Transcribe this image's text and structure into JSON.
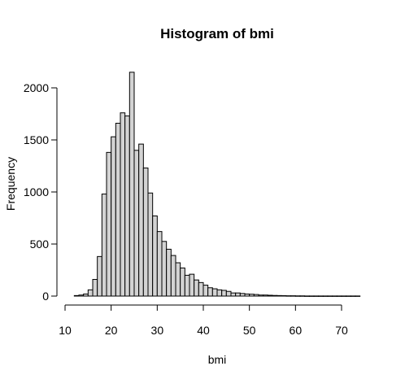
{
  "chart_data": {
    "type": "bar",
    "title": "Histogram of bmi",
    "xlabel": "bmi",
    "ylabel": "Frequency",
    "bin_width": 1,
    "bin_start": 12,
    "bin_end": 74,
    "values": [
      5,
      10,
      20,
      60,
      160,
      380,
      980,
      1380,
      1530,
      1660,
      1760,
      1730,
      2150,
      1400,
      1460,
      1230,
      990,
      770,
      620,
      525,
      450,
      390,
      320,
      270,
      200,
      210,
      155,
      130,
      105,
      80,
      70,
      60,
      55,
      45,
      30,
      30,
      25,
      20,
      18,
      15,
      10,
      10,
      8,
      6,
      5,
      4,
      3,
      3,
      2,
      2,
      1,
      1,
      1,
      1,
      1,
      1,
      1,
      1,
      1,
      1,
      1,
      1
    ],
    "xlim": [
      10,
      74
    ],
    "ylim": [
      0,
      2150
    ],
    "x_ticks": [
      10,
      20,
      30,
      40,
      50,
      60,
      70
    ],
    "y_ticks": [
      0,
      500,
      1000,
      1500,
      2000
    ],
    "colors": {
      "bar_fill": "#d3d3d3",
      "bar_stroke": "#000000"
    },
    "grid": false
  }
}
